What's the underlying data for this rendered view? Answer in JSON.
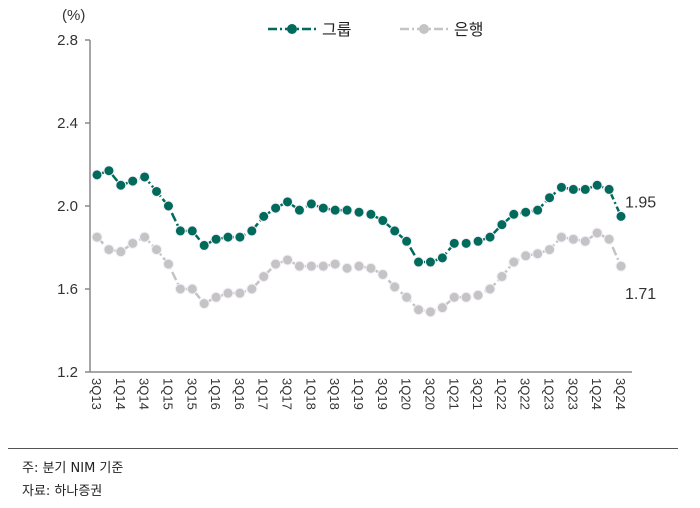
{
  "chart_data": {
    "type": "line",
    "ylabel": "(%)",
    "ylim": [
      1.2,
      2.8
    ],
    "yticks": [
      "1.2",
      "1.6",
      "2.0",
      "2.4",
      "2.8"
    ],
    "grid": false,
    "legend_position": "top",
    "categories": [
      "3Q13",
      "4Q13",
      "1Q14",
      "2Q14",
      "3Q14",
      "4Q14",
      "1Q15",
      "2Q15",
      "3Q15",
      "4Q15",
      "1Q16",
      "2Q16",
      "3Q16",
      "4Q16",
      "1Q17",
      "2Q17",
      "3Q17",
      "4Q17",
      "1Q18",
      "2Q18",
      "3Q18",
      "4Q18",
      "1Q19",
      "2Q19",
      "3Q19",
      "4Q19",
      "1Q20",
      "2Q20",
      "3Q20",
      "4Q20",
      "1Q21",
      "2Q21",
      "3Q21",
      "4Q21",
      "1Q22",
      "2Q22",
      "3Q22",
      "4Q22",
      "1Q23",
      "2Q23",
      "3Q23",
      "4Q23",
      "1Q24",
      "2Q24",
      "3Q24"
    ],
    "series": [
      {
        "name": "그룹",
        "color": "#006b5a",
        "values": [
          2.15,
          2.17,
          2.1,
          2.12,
          2.14,
          2.07,
          2.0,
          1.88,
          1.88,
          1.81,
          1.84,
          1.85,
          1.85,
          1.88,
          1.95,
          1.99,
          2.02,
          1.98,
          2.01,
          1.99,
          1.98,
          1.98,
          1.97,
          1.96,
          1.93,
          1.88,
          1.83,
          1.73,
          1.73,
          1.75,
          1.82,
          1.82,
          1.83,
          1.85,
          1.91,
          1.96,
          1.97,
          1.98,
          2.04,
          2.09,
          2.08,
          2.08,
          2.1,
          2.08,
          1.95
        ],
        "end_label": "1.95"
      },
      {
        "name": "은행",
        "color": "#c4c4c4",
        "values": [
          1.85,
          1.79,
          1.78,
          1.82,
          1.85,
          1.79,
          1.72,
          1.6,
          1.6,
          1.53,
          1.56,
          1.58,
          1.58,
          1.6,
          1.66,
          1.72,
          1.74,
          1.71,
          1.71,
          1.71,
          1.72,
          1.7,
          1.71,
          1.7,
          1.67,
          1.61,
          1.56,
          1.5,
          1.49,
          1.51,
          1.56,
          1.56,
          1.57,
          1.6,
          1.66,
          1.73,
          1.76,
          1.77,
          1.79,
          1.85,
          1.84,
          1.83,
          1.87,
          1.84,
          1.71
        ],
        "end_label": "1.71"
      }
    ]
  },
  "notes": {
    "note": "주: 분기 NIM 기준",
    "source": "자료: 하나증권"
  }
}
